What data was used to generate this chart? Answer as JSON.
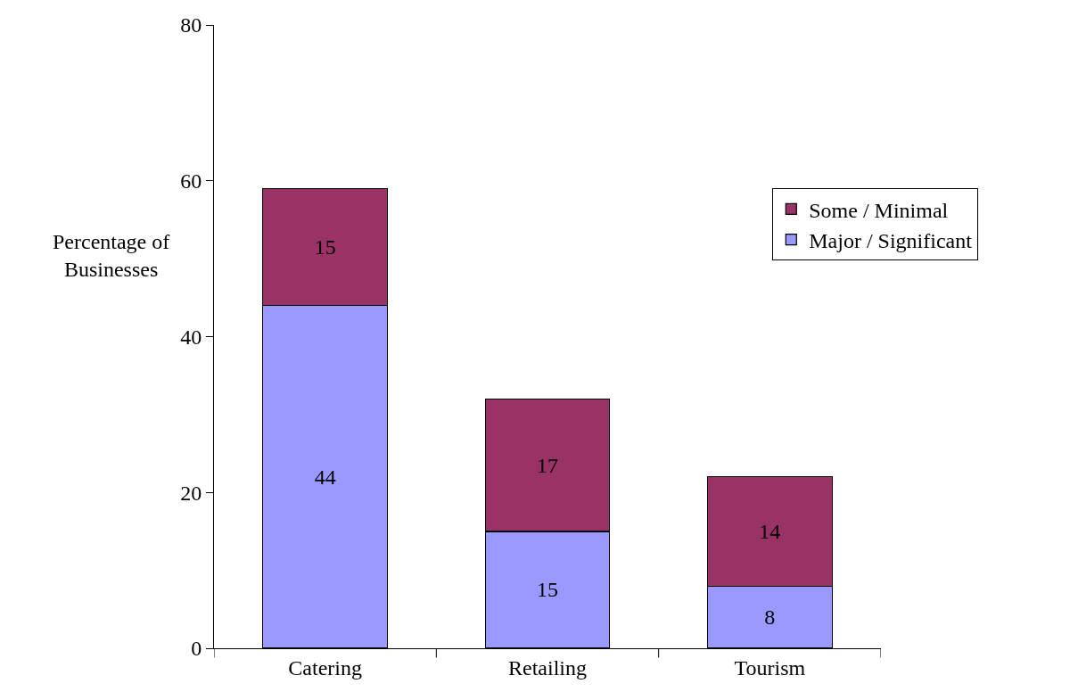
{
  "chart_data": {
    "type": "bar",
    "stacked": true,
    "ylabel": "Percentage of Businesses",
    "categories": [
      "Catering",
      "Retailing",
      "Tourism"
    ],
    "series": [
      {
        "name": "Major / Significant",
        "color": "#9999ff",
        "values": [
          44,
          15,
          8
        ]
      },
      {
        "name": "Some / Minimal",
        "color": "#993366",
        "values": [
          15,
          17,
          14
        ]
      }
    ],
    "ylim": [
      0,
      80
    ],
    "yticks": [
      0,
      20,
      40,
      60,
      80
    ],
    "grid": false,
    "legend": "right",
    "data_labels": true
  }
}
